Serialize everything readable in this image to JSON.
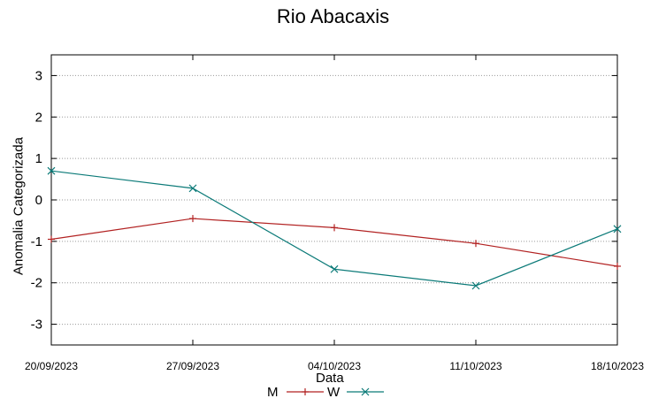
{
  "chart_data": {
    "type": "line",
    "title": "Rio Abacaxis",
    "xlabel": "Data",
    "ylabel": "Anomalia Categorizada",
    "x": [
      "20/09/2023",
      "27/09/2023",
      "04/10/2023",
      "11/10/2023",
      "18/10/2023"
    ],
    "ylim": [
      -3.5,
      3.5
    ],
    "yticks": [
      "3",
      "2",
      "1",
      "0",
      "-1",
      "-2",
      "-3"
    ],
    "grid": true,
    "legend_position": "bottom",
    "series": [
      {
        "name": "M",
        "color": "#b22222",
        "marker": "plus",
        "values": [
          -0.95,
          -0.45,
          -0.67,
          -1.05,
          -1.6
        ]
      },
      {
        "name": "W",
        "color": "#0b7a78",
        "marker": "cross",
        "values": [
          0.7,
          0.28,
          -1.67,
          -2.07,
          -0.7
        ]
      }
    ]
  }
}
